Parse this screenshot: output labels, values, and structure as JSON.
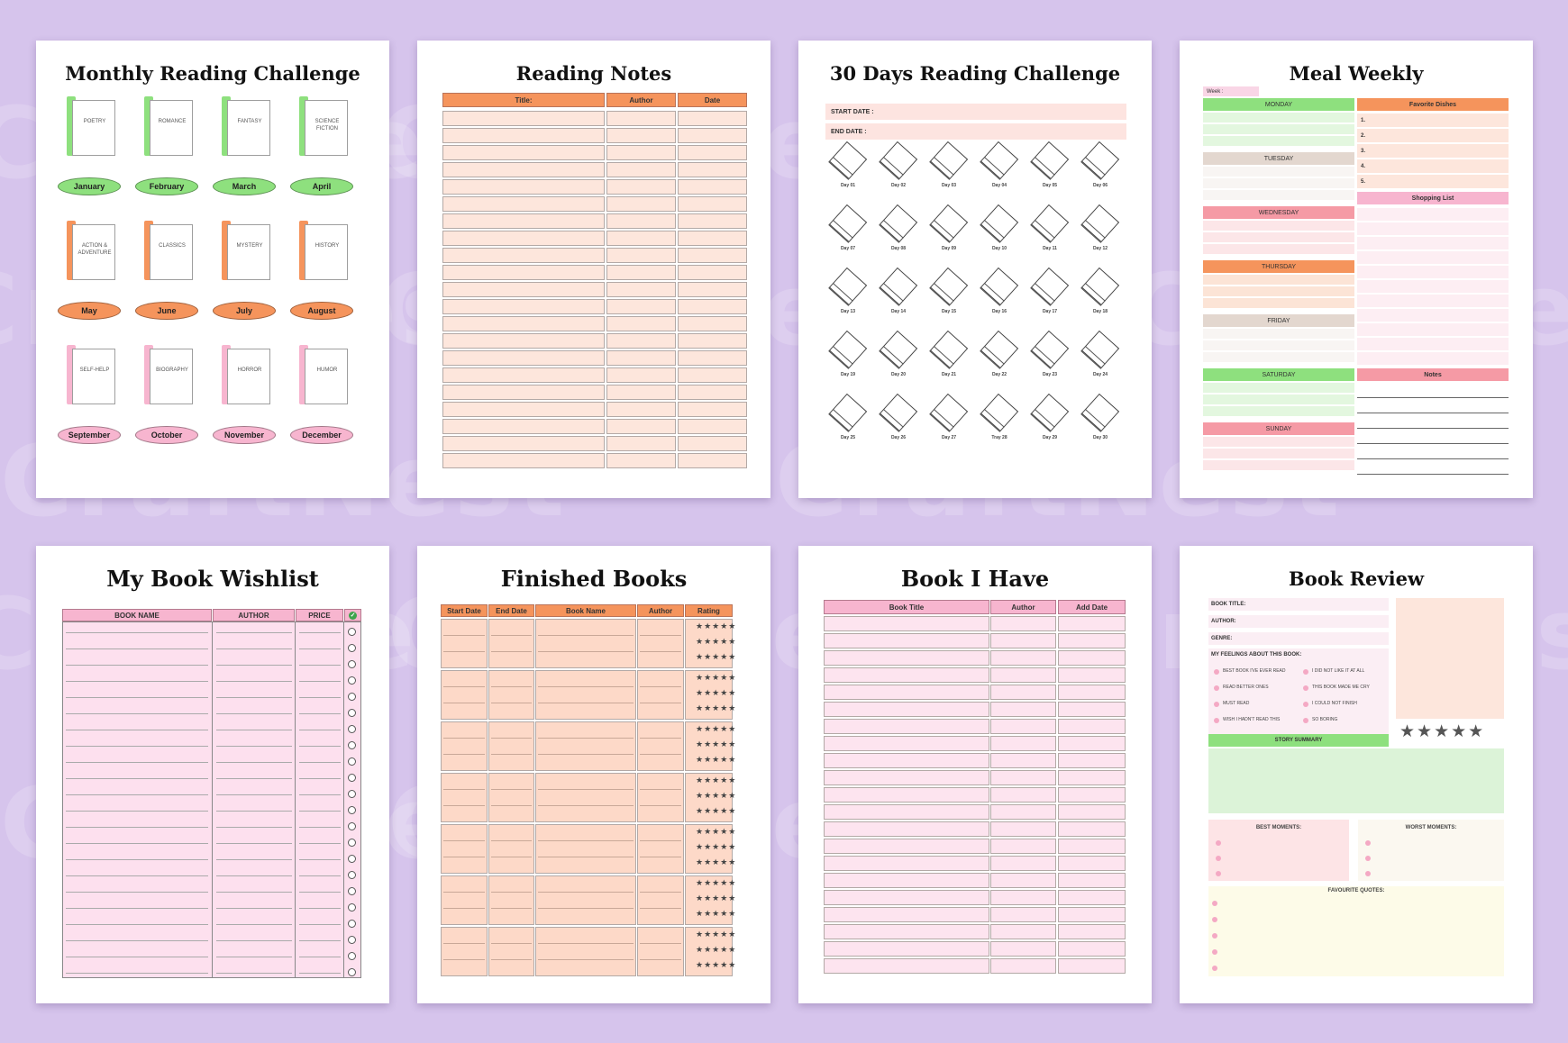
{
  "watermark": "CraftNest",
  "monthly": {
    "title": "Monthly Reading Challenge",
    "genres": [
      "POETRY",
      "ROMANCE",
      "FANTASY",
      "SCIENCE FICTION",
      "ACTION & ADVENTURE",
      "CLASSICS",
      "MYSTERY",
      "HISTORY",
      "SELF-HELP",
      "BIOGRAPHY",
      "HORROR",
      "HUMOR"
    ],
    "months": [
      "January",
      "February",
      "March",
      "April",
      "May",
      "June",
      "July",
      "August",
      "September",
      "October",
      "November",
      "December"
    ],
    "colors": [
      "#8ee07e",
      "#f5945c",
      "#f7b5cf"
    ]
  },
  "notes": {
    "title": "Reading Notes",
    "headers": [
      "Title:",
      "Author",
      "Date"
    ],
    "header_color": "#f5945c",
    "row_color": "#fde6dc",
    "rows": 21
  },
  "thirty": {
    "title": "30 Days Reading Challenge",
    "start_label": "START DATE :",
    "end_label": "END DATE :",
    "days": [
      "Day 01",
      "Day 02",
      "Day 03",
      "Day 04",
      "Day 05",
      "Day 06",
      "Day 07",
      "Day 08",
      "Day 09",
      "Day 10",
      "Day 11",
      "Day 12",
      "Day 13",
      "Day 14",
      "Day 15",
      "Day 16",
      "Day 17",
      "Day 18",
      "Day 19",
      "Day 20",
      "Day 21",
      "Day 22",
      "Day 23",
      "Day 24",
      "Day 25",
      "Day 26",
      "Day 27",
      "Tray 28",
      "Day 29",
      "Day 30"
    ]
  },
  "meal": {
    "title": "Meal Weekly",
    "week_label": "Week :",
    "days": [
      "MONDAY",
      "TUESDAY",
      "WEDNESDAY",
      "THURSDAY",
      "FRIDAY",
      "SATURDAY",
      "SUNDAY"
    ],
    "day_colors": [
      "#8ee07e",
      "#e3d7cf",
      "#f59aa5",
      "#f5945c",
      "#e3d7cf",
      "#8ee07e",
      "#f59aa5"
    ],
    "favorite_label": "Favorite Dishes",
    "favorites": [
      "1.",
      "2.",
      "3.",
      "4.",
      "5."
    ],
    "shopping_label": "Shopping List",
    "notes_label": "Notes"
  },
  "wishlist": {
    "title": "My Book Wishlist",
    "headers": [
      "BOOK NAME",
      "AUTHOR",
      "PRICE"
    ],
    "check_icon": "check-circle-icon",
    "rows": 22
  },
  "finished": {
    "title": "Finished Books",
    "headers": [
      "Start Date",
      "End Date",
      "Book Name",
      "Author",
      "Rating"
    ],
    "stars": "★★★★★",
    "groups": 7
  },
  "have": {
    "title": "Book I Have",
    "headers": [
      "Book Title",
      "Author",
      "Add Date"
    ],
    "rows": 21
  },
  "review": {
    "title": "Book Review",
    "book_title_label": "BOOK TITLE:",
    "author_label": "AUTHOR:",
    "genre_label": "GENRE:",
    "feelings_label": "MY FEELINGS ABOUT THIS BOOK:",
    "feelings": [
      "BEST BOOK I'VE EVER READ",
      "I DID NOT LIKE IT AT ALL",
      "READ BETTER ONES",
      "THIS BOOK MADE ME CRY",
      "MUST READ",
      "I COULD NOT FINISH",
      "WISH I HADN'T READ THIS",
      "SO BORING"
    ],
    "stars": "★★★★★",
    "story_label": "STORY SUMMARY",
    "best_label": "BEST MOMENTS:",
    "worst_label": "WORST MOMENTS:",
    "quotes_label": "FAVOURITE QUOTES:"
  }
}
